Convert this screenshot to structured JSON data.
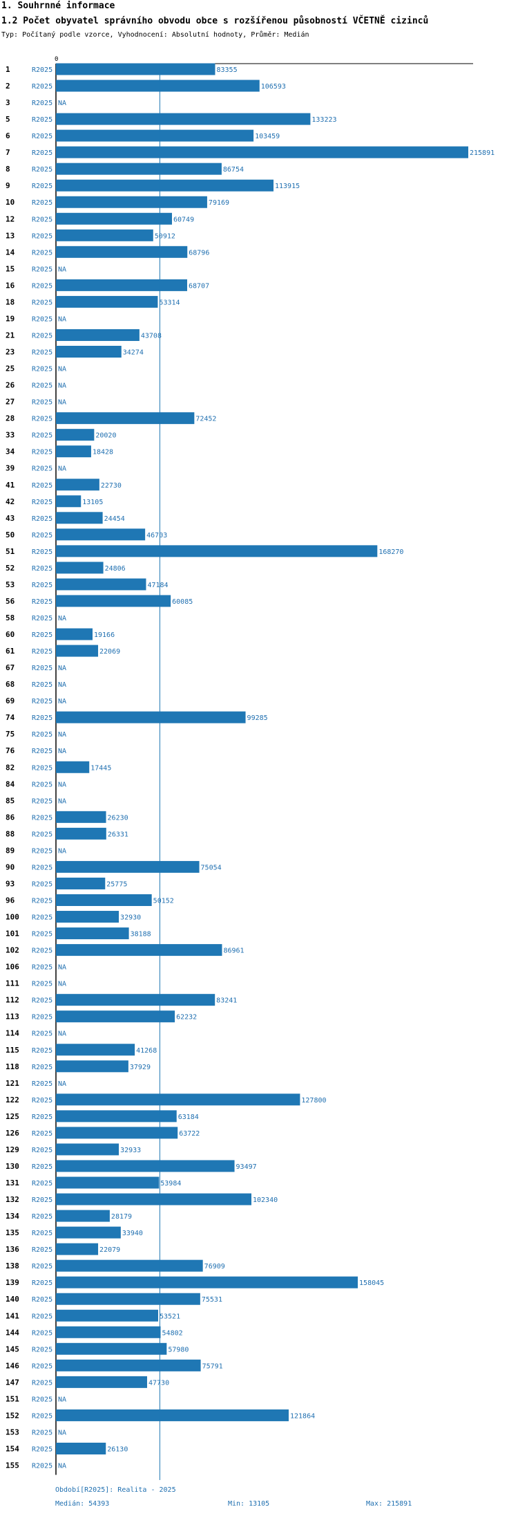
{
  "header": {
    "section_title": "1. Souhrnné informace",
    "chart_title": "1.2 Počet obyvatel správního obvodu obce s rozšířenou působností VČETNĚ cizinců",
    "subtitle": "Typ: Počítaný podle vzorce, Vyhodnocení: Absolutní hodnoty, Průměr: Medián"
  },
  "footer": {
    "period": "Období[R2025]: Realita - 2025",
    "median": "Medián: 54393",
    "min": "Min: 13105",
    "max": "Max: 215891"
  },
  "colors": {
    "bar": "#1f77b4",
    "label": "#1f6fb0",
    "axis": "#000000",
    "median_line": "#1f77b4"
  },
  "chart_data": {
    "type": "bar",
    "orientation": "horizontal",
    "title": "1.2 Počet obyvatel správního obvodu obce s rozšířenou působností VČETNĚ cizinců",
    "series_label": "R2025",
    "x_tick": "0",
    "xlim": [
      0,
      215891
    ],
    "median": 54393,
    "na_label": "NA",
    "categories": [
      "1",
      "2",
      "3",
      "5",
      "6",
      "7",
      "8",
      "9",
      "10",
      "12",
      "13",
      "14",
      "15",
      "16",
      "18",
      "19",
      "21",
      "23",
      "25",
      "26",
      "27",
      "28",
      "33",
      "34",
      "39",
      "41",
      "42",
      "43",
      "50",
      "51",
      "52",
      "53",
      "56",
      "58",
      "60",
      "61",
      "67",
      "68",
      "69",
      "74",
      "75",
      "76",
      "82",
      "84",
      "85",
      "86",
      "88",
      "89",
      "90",
      "93",
      "96",
      "100",
      "101",
      "102",
      "106",
      "111",
      "112",
      "113",
      "114",
      "115",
      "118",
      "121",
      "122",
      "125",
      "126",
      "129",
      "130",
      "131",
      "132",
      "134",
      "135",
      "136",
      "138",
      "139",
      "140",
      "141",
      "144",
      "145",
      "146",
      "147",
      "151",
      "152",
      "153",
      "154",
      "155"
    ],
    "values": [
      83355,
      106593,
      null,
      133223,
      103459,
      215891,
      86754,
      113915,
      79169,
      60749,
      50912,
      68796,
      null,
      68707,
      53314,
      null,
      43708,
      34274,
      null,
      null,
      null,
      72452,
      20020,
      18428,
      null,
      22730,
      13105,
      24454,
      46703,
      168270,
      24806,
      47184,
      60085,
      null,
      19166,
      22069,
      null,
      null,
      null,
      99285,
      null,
      null,
      17445,
      null,
      null,
      26230,
      26331,
      null,
      75054,
      25775,
      50152,
      32930,
      38188,
      86961,
      null,
      null,
      83241,
      62232,
      null,
      41268,
      37929,
      null,
      127800,
      63184,
      63722,
      32933,
      93497,
      53984,
      102340,
      28179,
      33940,
      22079,
      76909,
      158045,
      75531,
      53521,
      54802,
      57980,
      75791,
      47730,
      null,
      121864,
      null,
      26130,
      null
    ]
  }
}
